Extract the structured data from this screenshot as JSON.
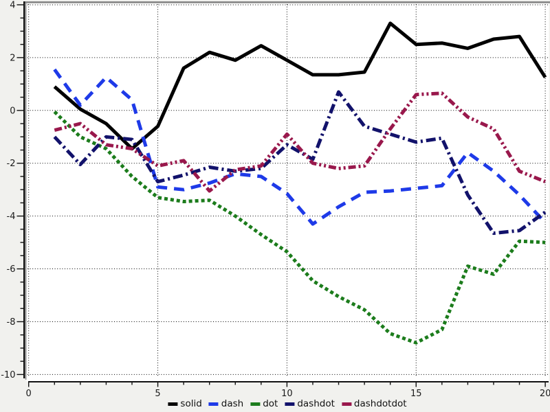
{
  "chart_data": {
    "type": "line",
    "title": "",
    "xlabel": "",
    "ylabel": "",
    "xlim": [
      0,
      20
    ],
    "ylim": [
      -10,
      4
    ],
    "x_ticks": [
      0,
      5,
      10,
      15,
      20
    ],
    "y_ticks": [
      4,
      2,
      0,
      -2,
      -4,
      -6,
      -8,
      -10
    ],
    "x_minor_step": 1,
    "y_minor_step": 0.5,
    "grid": "dotted-black-on-major-ticks",
    "legend_position": "bottom-center",
    "x": [
      1,
      2,
      3,
      4,
      5,
      6,
      7,
      8,
      9,
      10,
      11,
      12,
      13,
      14,
      15,
      16,
      17,
      18,
      19,
      20
    ],
    "series": [
      {
        "name": "solid",
        "label": "solid",
        "color": "#000000",
        "linestyle": "solid",
        "values": [
          0.9,
          0.05,
          -0.5,
          -1.45,
          -0.6,
          1.6,
          2.2,
          1.9,
          2.45,
          1.9,
          1.35,
          1.35,
          1.45,
          3.3,
          2.5,
          2.55,
          2.35,
          2.7,
          2.8,
          1.25
        ]
      },
      {
        "name": "dash",
        "label": "dash",
        "color": "#1e3ae8",
        "linestyle": "dash",
        "values": [
          1.55,
          0.2,
          1.25,
          0.4,
          -2.9,
          -3.0,
          -2.75,
          -2.4,
          -2.5,
          -3.15,
          -4.3,
          -3.65,
          -3.1,
          -3.05,
          -2.95,
          -2.85,
          -1.6,
          -2.3,
          -3.2,
          -4.25
        ]
      },
      {
        "name": "dot",
        "label": "dot",
        "color": "#1c7c1c",
        "linestyle": "dot",
        "values": [
          -0.05,
          -1.0,
          -1.45,
          -2.5,
          -3.3,
          -3.45,
          -3.4,
          -4.0,
          -4.7,
          -5.35,
          -6.45,
          -7.05,
          -7.55,
          -8.45,
          -8.8,
          -8.3,
          -5.9,
          -6.2,
          -4.95,
          -5.0
        ]
      },
      {
        "name": "dashdot",
        "label": "dashdot",
        "color": "#12126b",
        "linestyle": "dashdot",
        "values": [
          -1.0,
          -2.05,
          -1.0,
          -1.1,
          -2.7,
          -2.45,
          -2.15,
          -2.3,
          -2.2,
          -1.3,
          -1.85,
          0.7,
          -0.6,
          -0.9,
          -1.2,
          -1.05,
          -3.2,
          -4.65,
          -4.55,
          -3.85
        ]
      },
      {
        "name": "dashdotdot",
        "label": "dashdotdot",
        "color": "#99184c",
        "linestyle": "dashdotdot",
        "values": [
          -0.75,
          -0.5,
          -1.3,
          -1.45,
          -2.1,
          -1.9,
          -3.05,
          -2.25,
          -2.1,
          -0.9,
          -2.0,
          -2.2,
          -2.1,
          -0.7,
          0.6,
          0.65,
          -0.25,
          -0.7,
          -2.3,
          -2.7
        ]
      }
    ],
    "colors": {
      "page_background": "#f1f1ee",
      "plot_background": "#ffffff",
      "frame_gray": "#858585",
      "axis_black": "#111111",
      "grid_dots": "#000000",
      "tick_label": "#1a1a1a"
    }
  }
}
